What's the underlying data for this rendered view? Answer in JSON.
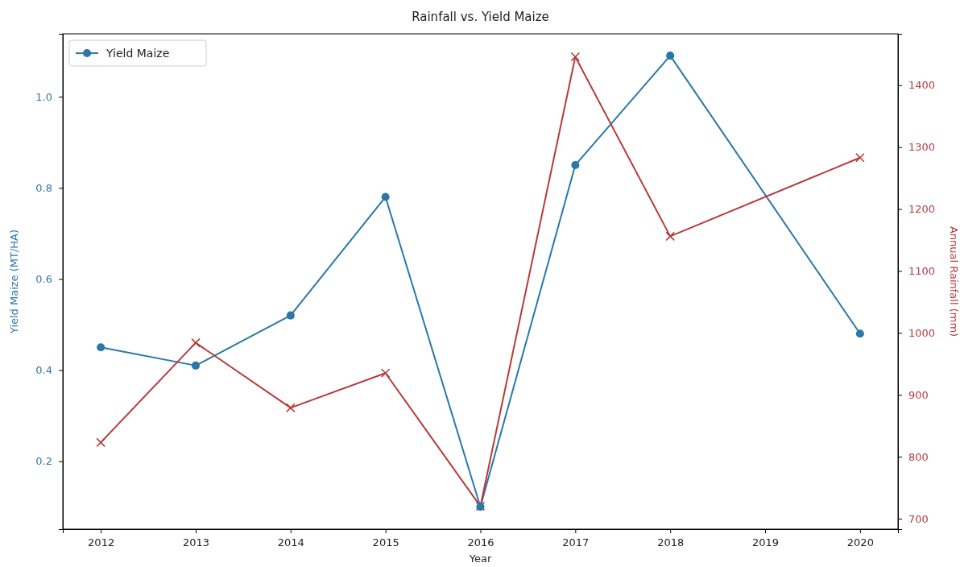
{
  "chart_data": {
    "type": "line",
    "title": "Rainfall vs. Yield Maize",
    "xlabel": "Year",
    "ylabel": "Yield Maize (MT/HA)",
    "y2label": "Annual Rainfall (mm)",
    "xlim": [
      2011.6,
      2020.4
    ],
    "xticks": [
      2012,
      2013,
      2014,
      2015,
      2016,
      2017,
      2018,
      2019,
      2020
    ],
    "ylim": [
      0.051,
      1.138
    ],
    "yticks": [
      {
        "value": 0.2,
        "label": "0.2"
      },
      {
        "value": 0.4,
        "label": "0.4"
      },
      {
        "value": 0.6,
        "label": "0.6"
      },
      {
        "value": 0.8,
        "label": "0.8"
      },
      {
        "value": 1,
        "label": "1.0"
      }
    ],
    "y2lim": [
      683,
      1483
    ],
    "y2ticks": [
      700,
      800,
      900,
      1000,
      1100,
      1200,
      1300,
      1400
    ],
    "legend": "top left",
    "grid": false,
    "series": [
      {
        "name": "Yield Maize",
        "color": "#2a78a8",
        "marker": "circle",
        "x": [
          2012,
          2013,
          2014,
          2015,
          2016,
          2017,
          2018,
          2020
        ],
        "values": [
          0.45,
          0.41,
          0.52,
          0.78,
          0.1,
          0.85,
          1.09,
          0.48
        ]
      },
      {
        "color": "#b83a3d",
        "marker": "cross",
        "axis": "y2",
        "x": [
          2012,
          2013,
          2014,
          2015,
          2016,
          2017,
          2018,
          2020
        ],
        "values": [
          823,
          984,
          879,
          935,
          720,
          1446,
          1156,
          1283
        ]
      }
    ]
  }
}
